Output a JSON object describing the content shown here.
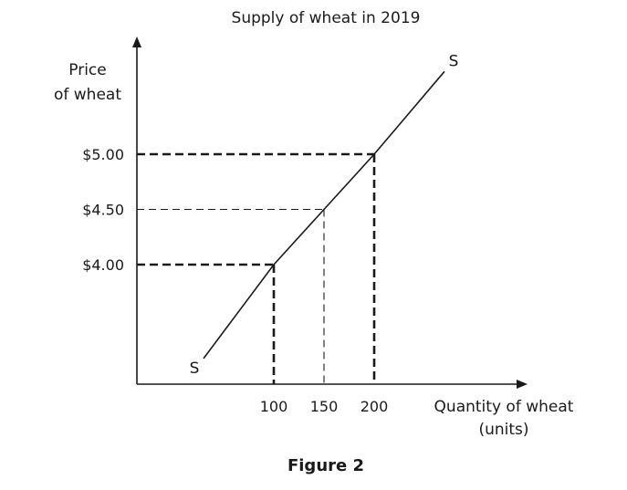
{
  "chart_data": {
    "type": "line",
    "title": "Supply of wheat in 2019",
    "ylabel": [
      "Price",
      "of wheat"
    ],
    "xlabel": [
      "Quantity of wheat",
      "(units)"
    ],
    "x_ticks": [
      100,
      150,
      200
    ],
    "y_ticks": [
      4.0,
      4.5,
      5.0
    ],
    "y_tick_labels": [
      "$4.00",
      "$4.50",
      "$5.00"
    ],
    "series": [
      {
        "name": "S",
        "x": [
          30,
          100,
          150,
          200,
          270
        ],
        "y": [
          3.15,
          4.0,
          4.5,
          5.0,
          5.75
        ]
      }
    ],
    "reference_points": [
      {
        "x": 100,
        "y": 4.0,
        "style": "bold-dashed"
      },
      {
        "x": 150,
        "y": 4.5,
        "style": "thin-dashed"
      },
      {
        "x": 200,
        "y": 5.0,
        "style": "bold-dashed"
      }
    ],
    "curve_labels": {
      "start": "S",
      "end": "S"
    },
    "caption": "Figure 2",
    "grid": false,
    "colors": {
      "ink": "#1a1a1a",
      "background": "#ffffff"
    }
  }
}
